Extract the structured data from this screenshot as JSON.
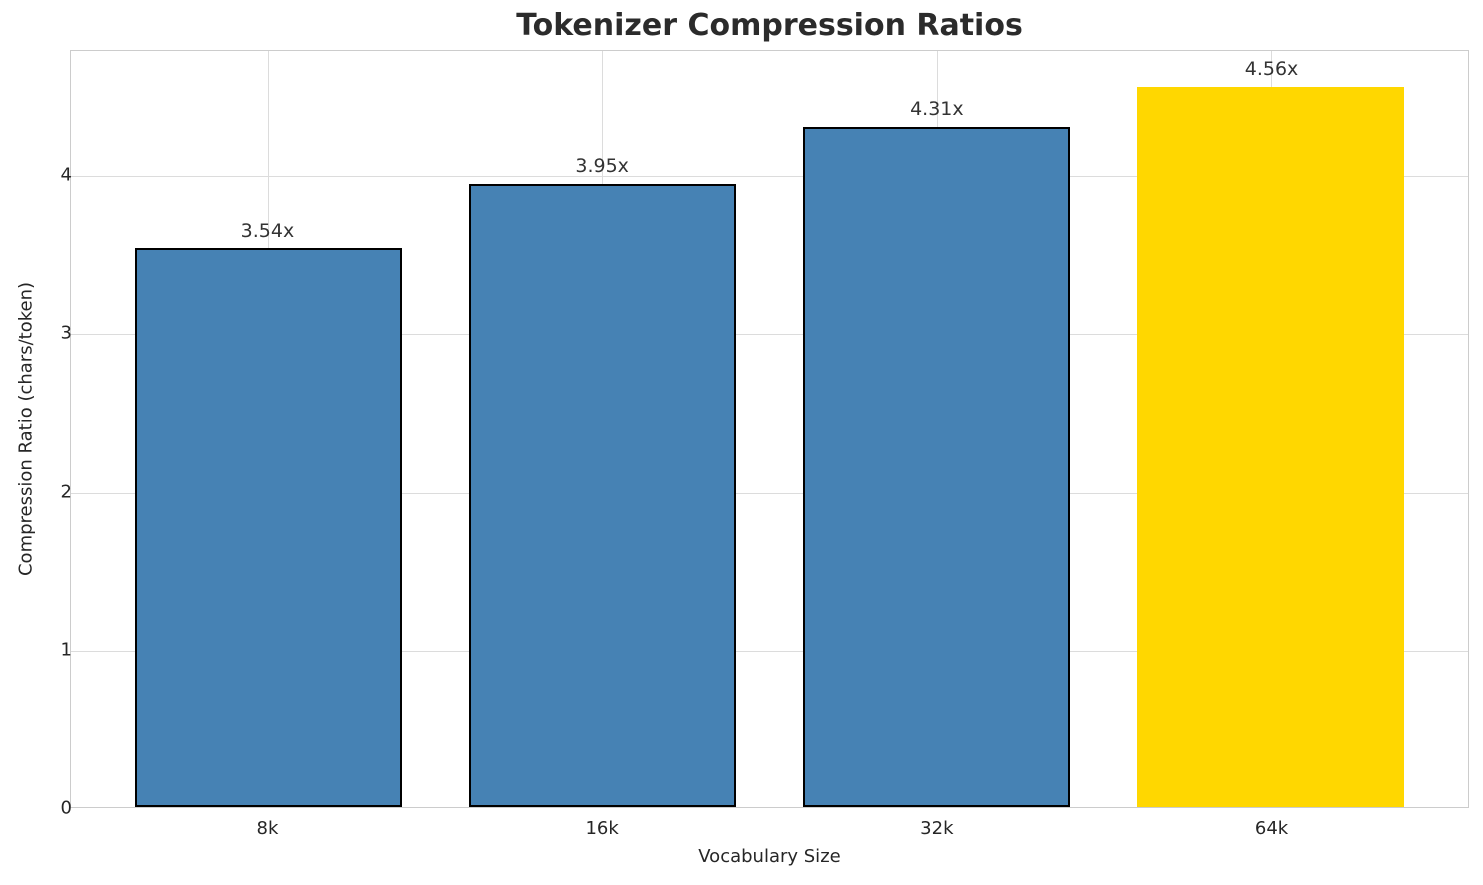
{
  "chart_data": {
    "type": "bar",
    "title": "Tokenizer Compression Ratios",
    "xlabel": "Vocabulary Size",
    "ylabel": "Compression Ratio (chars/token)",
    "categories": [
      "8k",
      "16k",
      "32k",
      "64k"
    ],
    "values": [
      3.54,
      3.95,
      4.31,
      4.56
    ],
    "value_labels": [
      "3.54x",
      "3.95x",
      "4.31x",
      "4.56x"
    ],
    "bar_colors": [
      "#4682B4",
      "#4682B4",
      "#4682B4",
      "#FFD700"
    ],
    "bar_edge_colors": [
      "#000000",
      "#000000",
      "#000000",
      "none"
    ],
    "yticks": [
      0,
      1,
      2,
      3,
      4
    ],
    "ylim": [
      0,
      4.79
    ],
    "grid": true,
    "legend_position": "none"
  },
  "colors": {
    "grid": "#dcdcdc",
    "spine": "#cccccc",
    "tick_text": "#262626",
    "title_text": "#2b2b2b",
    "annotation_text": "#333333",
    "background": "#ffffff"
  }
}
